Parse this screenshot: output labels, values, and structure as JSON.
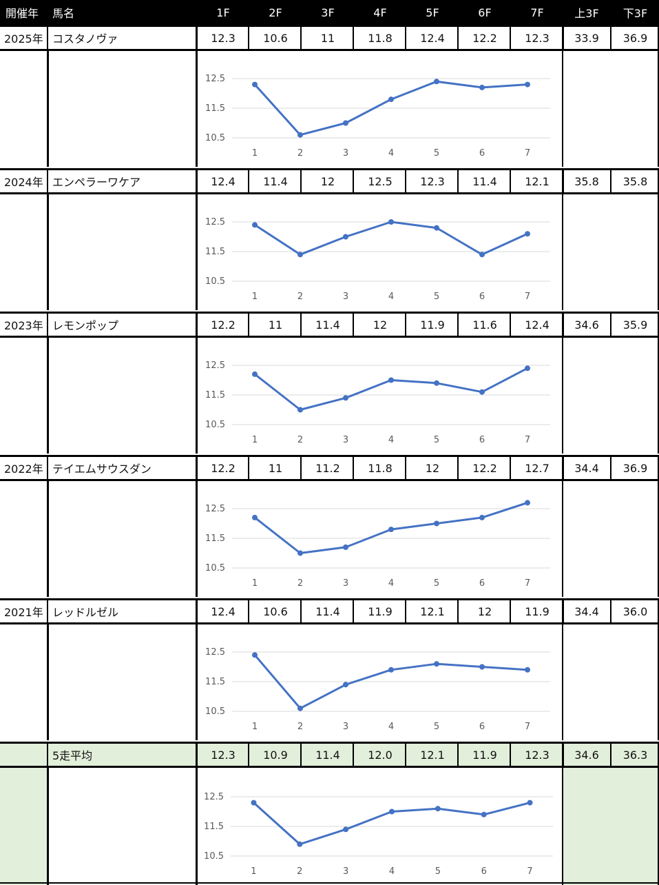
{
  "header": {
    "year": "開催年",
    "horse": "馬名",
    "furlongs": [
      "1F",
      "2F",
      "3F",
      "4F",
      "5F",
      "6F",
      "7F"
    ],
    "first3f": "上3F",
    "last3f": "下3F"
  },
  "colors": {
    "line": "#4472C4",
    "grid": "#d9d9d9",
    "green": "#e2efda",
    "border": "#000000"
  },
  "rows": [
    {
      "year": "2025年",
      "horse": "コスタノヴァ",
      "laps": [
        "12.3",
        "10.6",
        "11",
        "11.8",
        "12.4",
        "12.2",
        "12.3"
      ],
      "first3f": "33.9",
      "last3f": "36.9"
    },
    {
      "year": "2024年",
      "horse": "エンペラーワケア",
      "laps": [
        "12.4",
        "11.4",
        "12",
        "12.5",
        "12.3",
        "11.4",
        "12.1"
      ],
      "first3f": "35.8",
      "last3f": "35.8"
    },
    {
      "year": "2023年",
      "horse": "レモンポップ",
      "laps": [
        "12.2",
        "11",
        "11.4",
        "12",
        "11.9",
        "11.6",
        "12.4"
      ],
      "first3f": "34.6",
      "last3f": "35.9"
    },
    {
      "year": "2022年",
      "horse": "テイエムサウスダン",
      "laps": [
        "12.2",
        "11",
        "11.2",
        "11.8",
        "12",
        "12.2",
        "12.7"
      ],
      "first3f": "34.4",
      "last3f": "36.9"
    },
    {
      "year": "2021年",
      "horse": "レッドルゼル",
      "laps": [
        "12.4",
        "10.6",
        "11.4",
        "11.9",
        "12.1",
        "12",
        "11.9"
      ],
      "first3f": "34.4",
      "last3f": "36.0"
    },
    {
      "year": "",
      "horse": "5走平均",
      "laps": [
        "12.3",
        "10.9",
        "11.4",
        "12.0",
        "12.1",
        "11.9",
        "12.3"
      ],
      "first3f": "34.6",
      "last3f": "36.3"
    }
  ],
  "chart_data": [
    {
      "type": "line",
      "x": [
        1,
        2,
        3,
        4,
        5,
        6,
        7
      ],
      "series": [
        {
          "values": [
            12.3,
            10.6,
            11.0,
            11.8,
            12.4,
            12.2,
            12.3
          ]
        }
      ],
      "yticks": [
        "12.5",
        "11.5",
        "10.5"
      ],
      "xticks": [
        "1",
        "2",
        "3",
        "4",
        "5",
        "6",
        "7"
      ],
      "ylim": [
        10.5,
        13.0
      ],
      "grid": true
    },
    {
      "type": "line",
      "x": [
        1,
        2,
        3,
        4,
        5,
        6,
        7
      ],
      "series": [
        {
          "values": [
            12.4,
            11.4,
            12.0,
            12.5,
            12.3,
            11.4,
            12.1
          ]
        }
      ],
      "yticks": [
        "12.5",
        "11.5",
        "10.5"
      ],
      "xticks": [
        "1",
        "2",
        "3",
        "4",
        "5",
        "6",
        "7"
      ],
      "ylim": [
        10.5,
        13.0
      ],
      "grid": true
    },
    {
      "type": "line",
      "x": [
        1,
        2,
        3,
        4,
        5,
        6,
        7
      ],
      "series": [
        {
          "values": [
            12.2,
            11.0,
            11.4,
            12.0,
            11.9,
            11.6,
            12.4
          ]
        }
      ],
      "yticks": [
        "12.5",
        "11.5",
        "10.5"
      ],
      "xticks": [
        "1",
        "2",
        "3",
        "4",
        "5",
        "6",
        "7"
      ],
      "ylim": [
        10.5,
        13.0
      ],
      "grid": true
    },
    {
      "type": "line",
      "x": [
        1,
        2,
        3,
        4,
        5,
        6,
        7
      ],
      "series": [
        {
          "values": [
            12.2,
            11.0,
            11.2,
            11.8,
            12.0,
            12.2,
            12.7
          ]
        }
      ],
      "yticks": [
        "12.5",
        "11.5",
        "10.5"
      ],
      "xticks": [
        "1",
        "2",
        "3",
        "4",
        "5",
        "6",
        "7"
      ],
      "ylim": [
        10.5,
        13.0
      ],
      "grid": true
    },
    {
      "type": "line",
      "x": [
        1,
        2,
        3,
        4,
        5,
        6,
        7
      ],
      "series": [
        {
          "values": [
            12.4,
            10.6,
            11.4,
            11.9,
            12.1,
            12.0,
            11.9
          ]
        }
      ],
      "yticks": [
        "12.5",
        "11.5",
        "10.5"
      ],
      "xticks": [
        "1",
        "2",
        "3",
        "4",
        "5",
        "6",
        "7"
      ],
      "ylim": [
        10.5,
        13.0
      ],
      "grid": true
    },
    {
      "type": "line",
      "x": [
        1,
        2,
        3,
        4,
        5,
        6,
        7
      ],
      "series": [
        {
          "values": [
            12.3,
            10.9,
            11.4,
            12.0,
            12.1,
            11.9,
            12.3
          ]
        }
      ],
      "yticks": [
        "12.5",
        "11.5",
        "10.5"
      ],
      "xticks": [
        "1",
        "2",
        "3",
        "4",
        "5",
        "6",
        "7"
      ],
      "ylim": [
        10.5,
        13.0
      ],
      "grid": true
    }
  ]
}
